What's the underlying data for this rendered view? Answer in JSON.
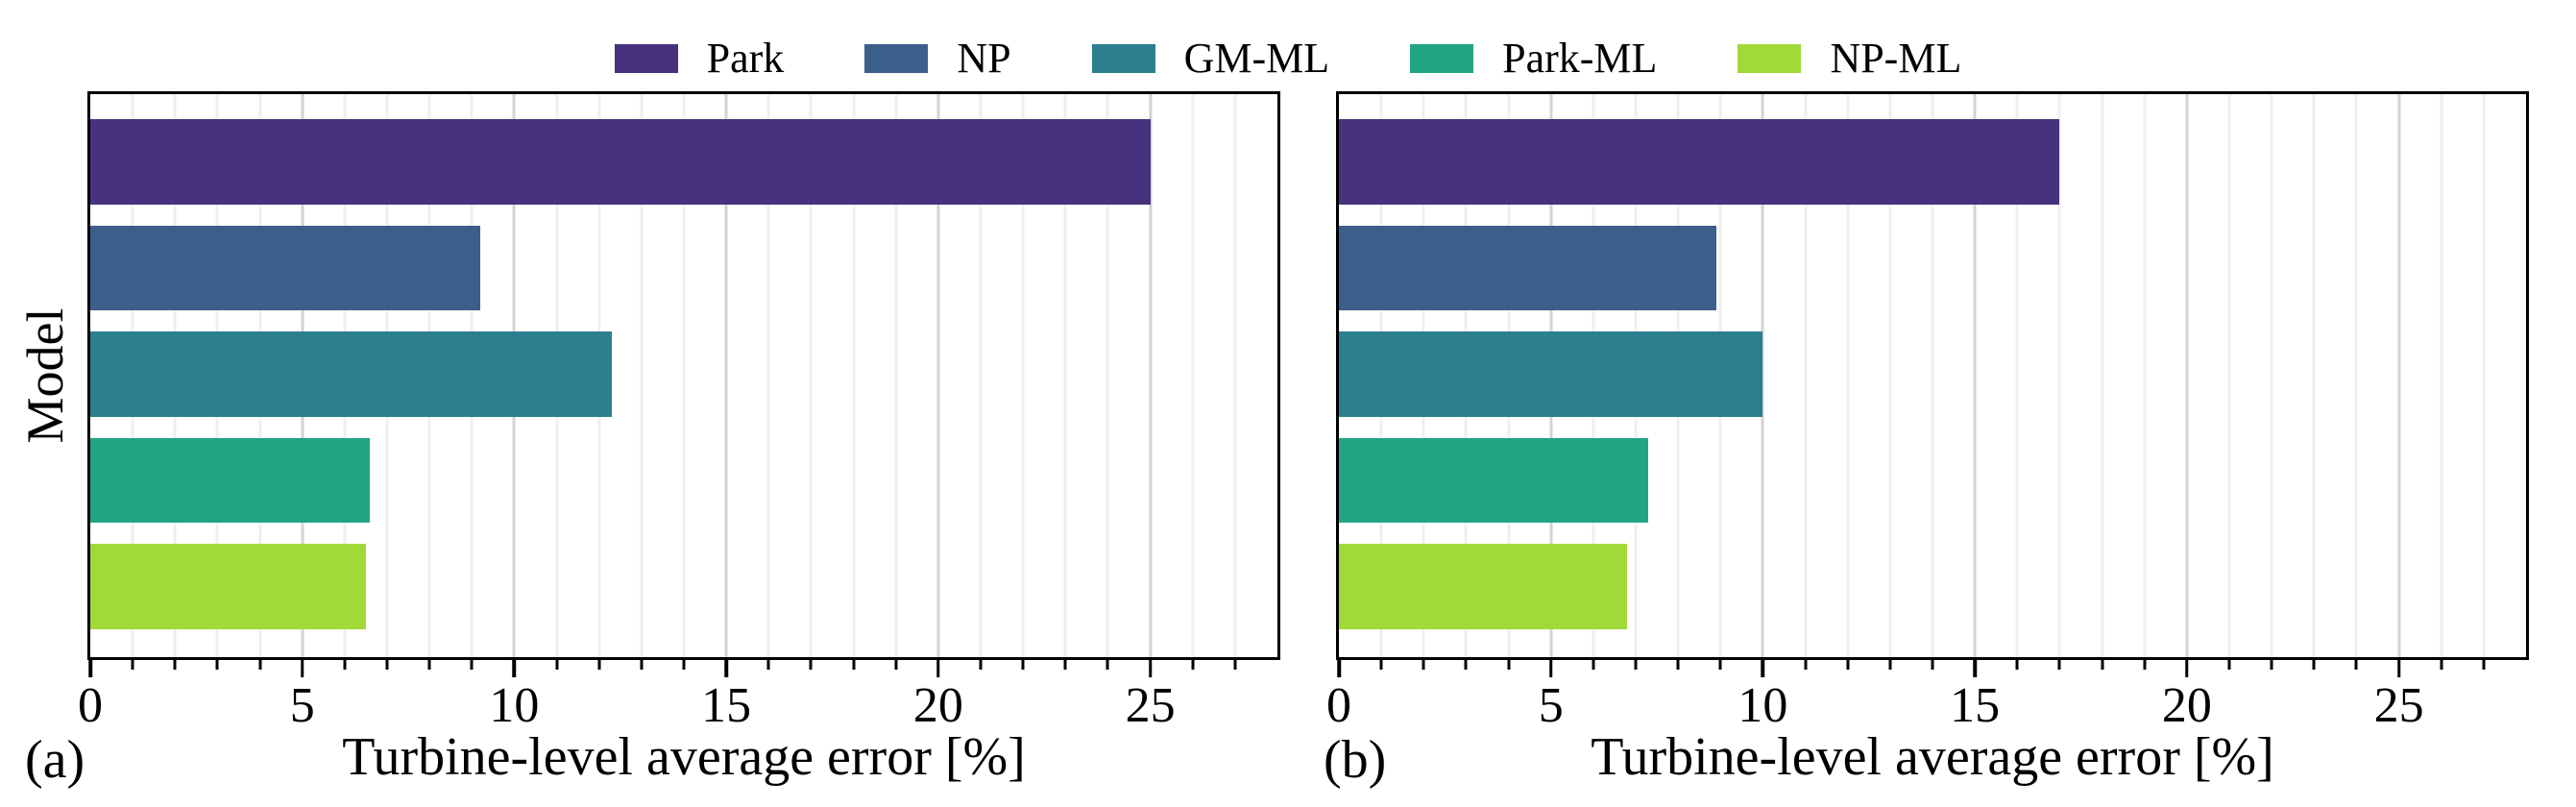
{
  "legend": {
    "position": "top-center",
    "entries": [
      {
        "label": "Park",
        "color": "#46327e"
      },
      {
        "label": "NP",
        "color": "#3b5e8b"
      },
      {
        "label": "GM-ML",
        "color": "#2b7f8e"
      },
      {
        "label": "Park-ML",
        "color": "#21a585"
      },
      {
        "label": "NP-ML",
        "color": "#a0d938"
      }
    ]
  },
  "chart_data": [
    {
      "type": "bar",
      "orientation": "horizontal",
      "panel_id": "a",
      "panel_label": "(a)",
      "title": "",
      "categories": [
        "Park",
        "NP",
        "GM-ML",
        "Park-ML",
        "NP-ML"
      ],
      "values": [
        25.0,
        9.2,
        12.3,
        6.6,
        6.5
      ],
      "xlabel": "Turbine-level average error [%]",
      "ylabel": "Model",
      "xlim": [
        0,
        28
      ],
      "xticks": [
        0,
        5,
        10,
        15,
        20,
        25
      ],
      "minor_tick_step": 1,
      "grid": "vertical-minor-and-major",
      "legend_series_colors": [
        "#46327e",
        "#3b5e8b",
        "#2b7f8e",
        "#21a585",
        "#a0d938"
      ]
    },
    {
      "type": "bar",
      "orientation": "horizontal",
      "panel_id": "b",
      "panel_label": "(b)",
      "title": "",
      "categories": [
        "Park",
        "NP",
        "GM-ML",
        "Park-ML",
        "NP-ML"
      ],
      "values": [
        17.0,
        8.9,
        10.0,
        7.3,
        6.8
      ],
      "xlabel": "Turbine-level average error [%]",
      "ylabel": "",
      "xlim": [
        0,
        28
      ],
      "xticks": [
        0,
        5,
        10,
        15,
        20,
        25
      ],
      "minor_tick_step": 1,
      "grid": "vertical-minor-and-major",
      "legend_series_colors": [
        "#46327e",
        "#3b5e8b",
        "#2b7f8e",
        "#21a585",
        "#a0d938"
      ]
    }
  ],
  "colors": {
    "background": "#ffffff",
    "spine": "#000000",
    "minor_gridline": "#efefef",
    "major_gridline": "#d3d3d3",
    "text": "#000000"
  }
}
